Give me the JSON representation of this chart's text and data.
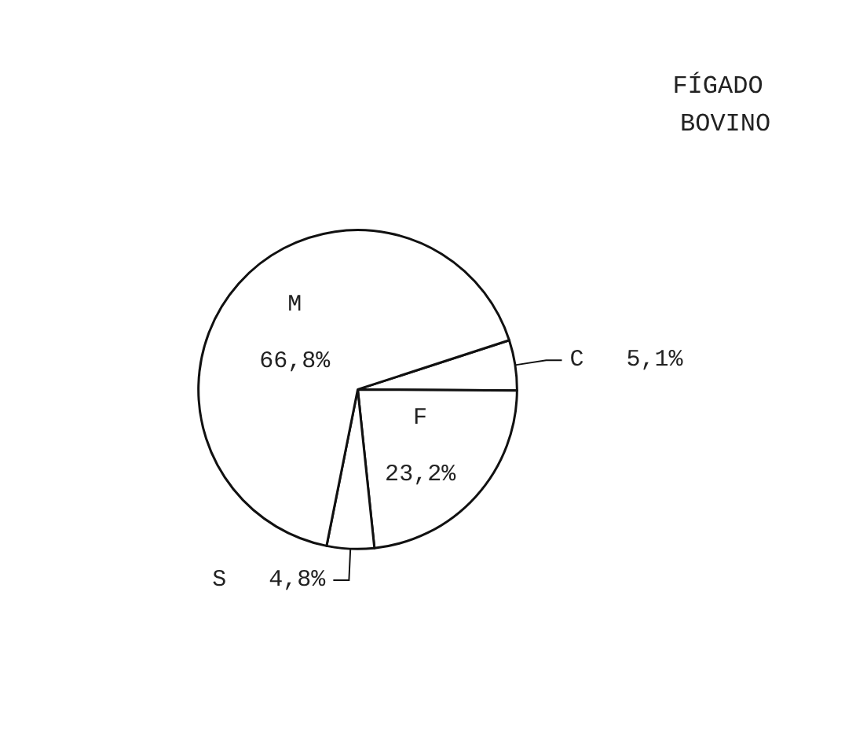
{
  "chart_data": {
    "type": "pie",
    "title": "FÍGADO BOVINO",
    "categories": [
      "C",
      "F",
      "S",
      "M"
    ],
    "values": [
      5.1,
      23.2,
      4.8,
      66.8
    ],
    "value_labels": [
      "5,1%",
      "23,2%",
      "4,8%",
      "66,8%"
    ],
    "colors": [
      "#ffffff",
      "#ffffff",
      "#ffffff",
      "#ffffff"
    ],
    "legend": false
  }
}
